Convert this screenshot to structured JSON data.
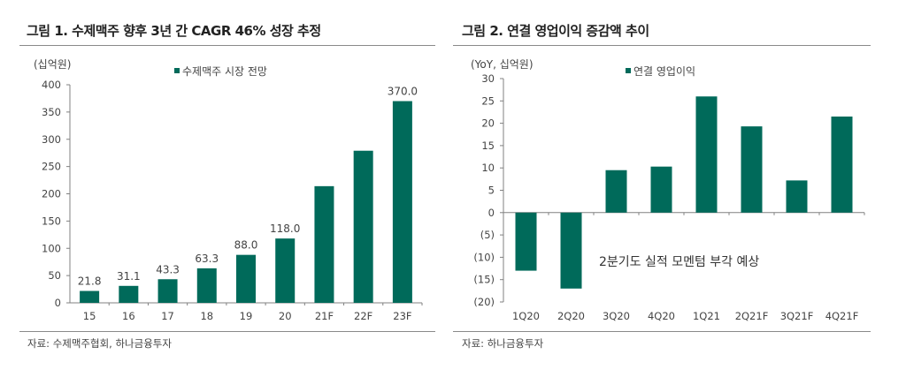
{
  "colors": {
    "bar": "#006a5a",
    "axis": "#808080",
    "text": "#444444"
  },
  "chart_data": [
    {
      "type": "bar",
      "title": "그림 1. 수제맥주 향후 3년 간 CAGR 46% 성장 추정",
      "unit_label": "(십억원)",
      "legend": "수제맥주 시장 전망",
      "legend_position": "top-center",
      "categories": [
        "15",
        "16",
        "17",
        "18",
        "19",
        "20",
        "21F",
        "22F",
        "23F"
      ],
      "values": [
        21.8,
        31.1,
        43.3,
        63.3,
        88.0,
        118.0,
        214,
        279,
        370.0
      ],
      "data_labels": [
        "21.8",
        "31.1",
        "43.3",
        "63.3",
        "88.0",
        "118.0",
        "",
        "",
        "370.0"
      ],
      "ylim": [
        0,
        400
      ],
      "yticks": [
        0,
        50,
        100,
        150,
        200,
        250,
        300,
        350,
        400
      ],
      "ytick_labels": [
        "0",
        "50",
        "100",
        "150",
        "200",
        "250",
        "300",
        "350",
        "400"
      ],
      "xlabel": "",
      "ylabel": "",
      "grid": false,
      "source": "자료: 수제맥주협회, 하나금융투자"
    },
    {
      "type": "bar",
      "title": "그림 2. 연결 영업이익 증감액 추이",
      "unit_label": "(YoY, 십억원)",
      "legend": "연결 영업이익",
      "legend_position": "top-center",
      "categories": [
        "1Q20",
        "2Q20",
        "3Q20",
        "4Q20",
        "1Q21",
        "2Q21F",
        "3Q21F",
        "4Q21F"
      ],
      "values": [
        -13.0,
        -17.0,
        9.5,
        10.3,
        26.0,
        19.3,
        7.2,
        21.5
      ],
      "ylim": [
        -20,
        30
      ],
      "yticks": [
        -20,
        -15,
        -10,
        -5,
        0,
        5,
        10,
        15,
        20,
        25,
        30
      ],
      "ytick_labels": [
        "(20)",
        "(15)",
        "(10)",
        "(5)",
        "0",
        "5",
        "10",
        "15",
        "20",
        "25",
        "30"
      ],
      "annotation": "2분기도 실적 모멘텀 부각 예상",
      "xlabel": "",
      "ylabel": "",
      "grid": false,
      "source": "자료: 하나금융투자"
    }
  ]
}
